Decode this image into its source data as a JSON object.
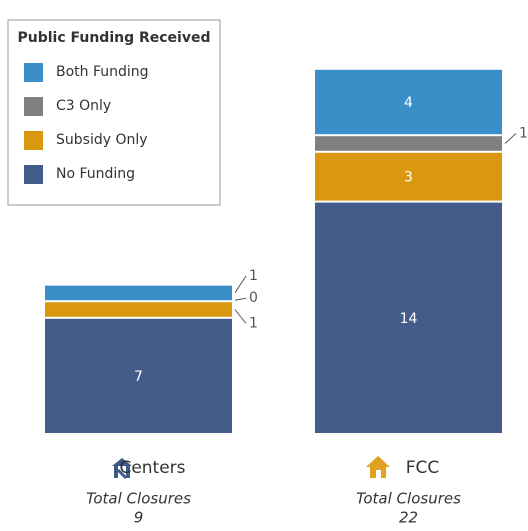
{
  "chart_data": {
    "type": "stacked_bar",
    "legend_title": "Public Funding Received",
    "categories": [
      "Centers",
      "FCC"
    ],
    "series": [
      {
        "name": "No Funding",
        "color": "#445c8a",
        "values": [
          7,
          14
        ]
      },
      {
        "name": "Subsidy Only",
        "color": "#d9980f",
        "values": [
          1,
          3
        ]
      },
      {
        "name": "C3 Only",
        "color": "#808080",
        "values": [
          0,
          1
        ]
      },
      {
        "name": "Both Funding",
        "color": "#3a8fc8",
        "values": [
          1,
          4
        ]
      }
    ],
    "total_label": "Total Closures",
    "totals": [
      9,
      22
    ],
    "legend": "top-left"
  }
}
